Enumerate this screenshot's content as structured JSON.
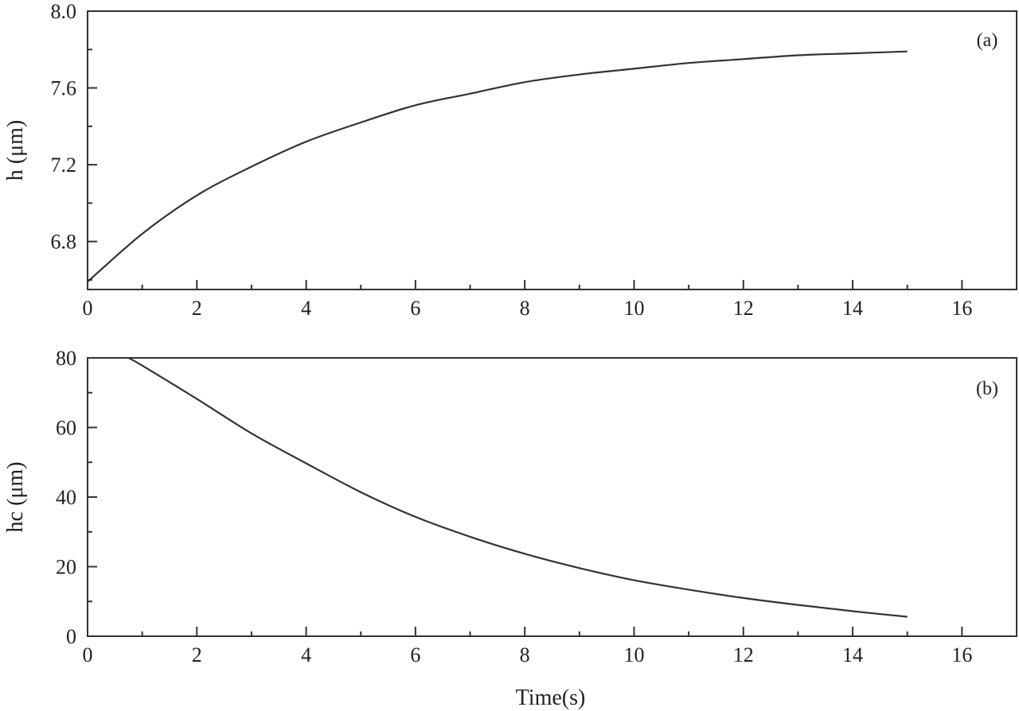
{
  "chart_data": [
    {
      "type": "line",
      "panel_label": "(a)",
      "xlabel": "",
      "ylabel": "h (μm)",
      "xlim": [
        0,
        17
      ],
      "ylim": [
        6.55,
        8.0
      ],
      "x_ticks": [
        "0",
        "2",
        "4",
        "6",
        "8",
        "10",
        "12",
        "14",
        "16"
      ],
      "y_ticks": [
        "6.8",
        "7.2",
        "7.6",
        "8.0"
      ],
      "series": [
        {
          "x": [
            0,
            1,
            2,
            3,
            4,
            5,
            6,
            7,
            8,
            9,
            10,
            11,
            12,
            13,
            14,
            15
          ],
          "values": [
            6.59,
            6.84,
            7.04,
            7.19,
            7.32,
            7.42,
            7.51,
            7.57,
            7.63,
            7.67,
            7.7,
            7.73,
            7.75,
            7.77,
            7.78,
            7.79
          ],
          "color": "#333333"
        }
      ],
      "grid": false
    },
    {
      "type": "line",
      "panel_label": "(b)",
      "xlabel": "Time(s)",
      "ylabel": "hc (μm)",
      "xlim": [
        0,
        17
      ],
      "ylim": [
        0,
        80
      ],
      "x_ticks": [
        "0",
        "2",
        "4",
        "6",
        "8",
        "10",
        "12",
        "14",
        "16"
      ],
      "y_ticks": [
        "0",
        "20",
        "40",
        "60",
        "80"
      ],
      "series": [
        {
          "x": [
            0.75,
            1,
            2,
            3,
            4,
            5,
            6,
            7,
            8,
            9,
            10,
            11,
            12,
            13,
            14,
            15
          ],
          "values": [
            80,
            77.8,
            68.2,
            58.3,
            49.7,
            41.4,
            34.3,
            28.6,
            23.7,
            19.6,
            16.1,
            13.4,
            11.0,
            9.0,
            7.2,
            5.6
          ],
          "color": "#333333"
        }
      ],
      "grid": false
    }
  ]
}
